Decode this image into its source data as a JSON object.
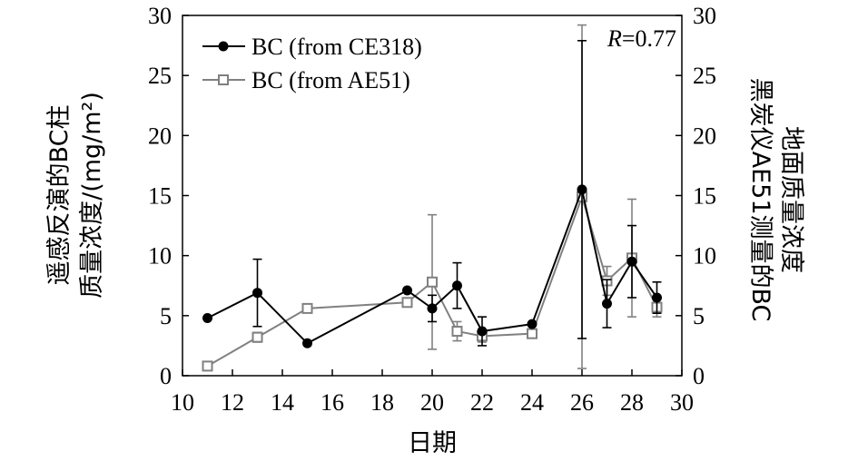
{
  "chart_data": {
    "type": "line",
    "xlabel": "日期",
    "ylabel_left": [
      "遥感反演的BC柱",
      "质量浓度/(mg/m²)"
    ],
    "ylabel_right": [
      "黑炭仪AE51测量的BC",
      "地面质量浓度"
    ],
    "xlim": [
      10,
      30
    ],
    "ylim": [
      0,
      30
    ],
    "xticks": [
      "10",
      "12",
      "14",
      "16",
      "18",
      "20",
      "22",
      "24",
      "26",
      "28",
      "30"
    ],
    "yticks": [
      "0",
      "5",
      "10",
      "15",
      "20",
      "25",
      "30"
    ],
    "annotation": {
      "italic": "R",
      "text": "=0.77"
    },
    "legend_position": "top-left",
    "grid": false,
    "series": [
      {
        "name": "BC (from CE318)",
        "color": "#000000",
        "marker": "filled-circle",
        "x": [
          11,
          13,
          15,
          19,
          20,
          21,
          22,
          24,
          26,
          27,
          28,
          29
        ],
        "y": [
          4.8,
          6.9,
          2.7,
          7.1,
          5.6,
          7.5,
          3.7,
          4.3,
          15.5,
          6.0,
          9.5,
          6.5
        ],
        "err": [
          0,
          2.8,
          0,
          0,
          1.1,
          1.9,
          1.2,
          0,
          12.4,
          2.0,
          3.0,
          1.3
        ]
      },
      {
        "name": "BC (from AE51)",
        "color": "#808080",
        "marker": "open-square",
        "x": [
          11,
          13,
          15,
          19,
          20,
          21,
          22,
          24,
          26,
          27,
          28,
          29
        ],
        "y": [
          0.8,
          3.2,
          5.6,
          6.1,
          7.8,
          3.7,
          3.3,
          3.5,
          14.9,
          7.9,
          9.8,
          5.7
        ],
        "err": [
          0,
          0.4,
          0,
          0,
          5.6,
          0.8,
          0.5,
          0,
          14.3,
          1.2,
          4.9,
          0.8
        ]
      }
    ]
  }
}
